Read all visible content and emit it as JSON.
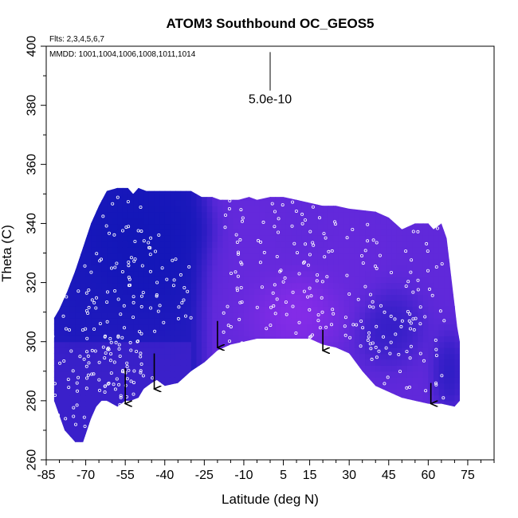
{
  "chart_data": {
    "type": "heatmap",
    "title": "ATOM3 Southbound OC_GEOS5",
    "notes": {
      "flights": "Flts: 2,3,4,5,6,7",
      "mmdd": "MMDD: 1001,1004,1006,1008,1011,1014"
    },
    "xlabel": "Latitude (deg N)",
    "ylabel": "Theta (C)",
    "xlim": [
      -85,
      85
    ],
    "ylim": [
      260,
      400
    ],
    "xticks": [
      -85,
      -70,
      -55,
      -40,
      -25,
      -10,
      5,
      15,
      30,
      45,
      60,
      75
    ],
    "xtick_labels": [
      "-85",
      "-70",
      "-55",
      "-40",
      "-25",
      "-10",
      "5",
      "15",
      "30",
      "45",
      "60",
      "75"
    ],
    "yticks": [
      260,
      280,
      300,
      320,
      340,
      360,
      380,
      400
    ],
    "ytick_labels": [
      "260",
      "280",
      "300",
      "320",
      "340",
      "360",
      "380",
      "400"
    ],
    "scale_label": "5.0e-10",
    "scale_bar": {
      "x": 0,
      "y_top": 398,
      "y_bottom": 385
    },
    "colors": {
      "low": "#0a14b4",
      "mid": "#5a28d8",
      "high": "#9a2ef0",
      "points": "#ffffff",
      "arrows": "#000000"
    },
    "field_outline": {
      "lat": [
        -82,
        -82,
        -80,
        -77,
        -74,
        -71,
        -68,
        -65,
        -62,
        -58,
        -54,
        -52,
        -50,
        -47,
        -30,
        -26,
        -22,
        -19,
        -16,
        -12,
        -8,
        -5,
        0,
        5,
        10,
        15,
        20,
        25,
        30,
        40,
        45,
        50,
        55,
        60,
        62,
        65,
        67,
        69,
        71,
        72,
        72,
        70,
        65,
        60,
        55,
        50,
        45,
        40,
        35,
        30,
        25,
        20,
        15,
        10,
        5,
        0,
        -5,
        -10,
        -15,
        -20,
        -25,
        -30,
        -35,
        -40,
        -43,
        -45,
        -48,
        -50,
        -53,
        -55,
        -58,
        -62,
        -64,
        -66,
        -68,
        -71,
        -74,
        -78,
        -82
      ],
      "theta": [
        288,
        308,
        311,
        317,
        324,
        332,
        340,
        346,
        351,
        352,
        352,
        350,
        352,
        351,
        351,
        349,
        349,
        348,
        348,
        348,
        349,
        348,
        349,
        349,
        348,
        347,
        346,
        346,
        345,
        344,
        342,
        338,
        340,
        340,
        338,
        340,
        335,
        320,
        305,
        300,
        280,
        278,
        279,
        279,
        280,
        281,
        283,
        285,
        290,
        296,
        298,
        299,
        301,
        301,
        301,
        301,
        301,
        300,
        299,
        297,
        293,
        290,
        286,
        285,
        287,
        286,
        284,
        281,
        280,
        280,
        278,
        280,
        280,
        278,
        274,
        266,
        266,
        270,
        280
      ]
    },
    "value_blobs": [
      {
        "lat": -55,
        "theta": 335,
        "level": 0.02,
        "r_lat": 18,
        "r_theta": 18
      },
      {
        "lat": -40,
        "theta": 332,
        "level": 0.05,
        "r_lat": 14,
        "r_theta": 16
      },
      {
        "lat": -72,
        "theta": 320,
        "level": 0.1,
        "r_lat": 10,
        "r_theta": 14
      },
      {
        "lat": -30,
        "theta": 338,
        "level": 0.08,
        "r_lat": 8,
        "r_theta": 8
      },
      {
        "lat": 45,
        "theta": 305,
        "level": 0.15,
        "r_lat": 10,
        "r_theta": 10
      },
      {
        "lat": 68,
        "theta": 290,
        "level": 0.1,
        "r_lat": 5,
        "r_theta": 10
      },
      {
        "lat": -10,
        "theta": 330,
        "level": 0.6,
        "r_lat": 12,
        "r_theta": 20
      },
      {
        "lat": 10,
        "theta": 310,
        "level": 0.95,
        "r_lat": 15,
        "r_theta": 10
      },
      {
        "lat": 30,
        "theta": 325,
        "level": 0.6,
        "r_lat": 10,
        "r_theta": 14
      }
    ],
    "arrows": [
      {
        "lat": -55,
        "theta_top": 291,
        "theta_bottom": 279
      },
      {
        "lat": -44,
        "theta_top": 296,
        "theta_bottom": 284
      },
      {
        "lat": -20,
        "theta_top": 307,
        "theta_bottom": 298
      },
      {
        "lat": 20,
        "theta_top": 304,
        "theta_bottom": 297
      },
      {
        "lat": 61,
        "theta_top": 286,
        "theta_bottom": 279
      }
    ],
    "point_tracks": [
      {
        "lat_start": -68,
        "lat_end": -48,
        "theta_start": 270,
        "theta_end": 348,
        "count": 60,
        "spread": 4
      },
      {
        "lat_start": -62,
        "lat_end": -42,
        "theta_start": 275,
        "theta_end": 340,
        "count": 50,
        "spread": 4
      },
      {
        "lat_start": -78,
        "lat_end": -62,
        "theta_start": 282,
        "theta_end": 330,
        "count": 40,
        "spread": 3
      },
      {
        "lat_start": -45,
        "lat_end": -30,
        "theta_start": 305,
        "theta_end": 330,
        "count": 20,
        "spread": 2
      },
      {
        "lat_start": -18,
        "lat_end": -10,
        "theta_start": 300,
        "theta_end": 348,
        "count": 30,
        "spread": 2
      },
      {
        "lat_start": -5,
        "lat_end": 5,
        "theta_start": 302,
        "theta_end": 348,
        "count": 25,
        "spread": 2
      },
      {
        "lat_start": 5,
        "lat_end": 15,
        "theta_start": 301,
        "theta_end": 347,
        "count": 25,
        "spread": 2
      },
      {
        "lat_start": 15,
        "lat_end": 25,
        "theta_start": 300,
        "theta_end": 346,
        "count": 30,
        "spread": 2
      },
      {
        "lat_start": 30,
        "lat_end": 40,
        "theta_start": 296,
        "theta_end": 340,
        "count": 25,
        "spread": 2
      },
      {
        "lat_start": 40,
        "lat_end": 55,
        "theta_start": 283,
        "theta_end": 336,
        "count": 25,
        "spread": 2
      },
      {
        "lat_start": 55,
        "lat_end": 66,
        "theta_start": 280,
        "theta_end": 338,
        "count": 25,
        "spread": 2
      },
      {
        "lat_start": -84,
        "lat_end": -66,
        "theta_start": 270,
        "theta_end": 300,
        "count": 25,
        "spread": 3
      },
      {
        "lat_start": -60,
        "lat_end": -48,
        "theta_start": 282,
        "theta_end": 300,
        "count": 20,
        "spread": 2
      },
      {
        "lat_start": 10,
        "lat_end": 60,
        "theta_start": 296,
        "theta_end": 312,
        "count": 30,
        "spread": 3
      }
    ]
  }
}
